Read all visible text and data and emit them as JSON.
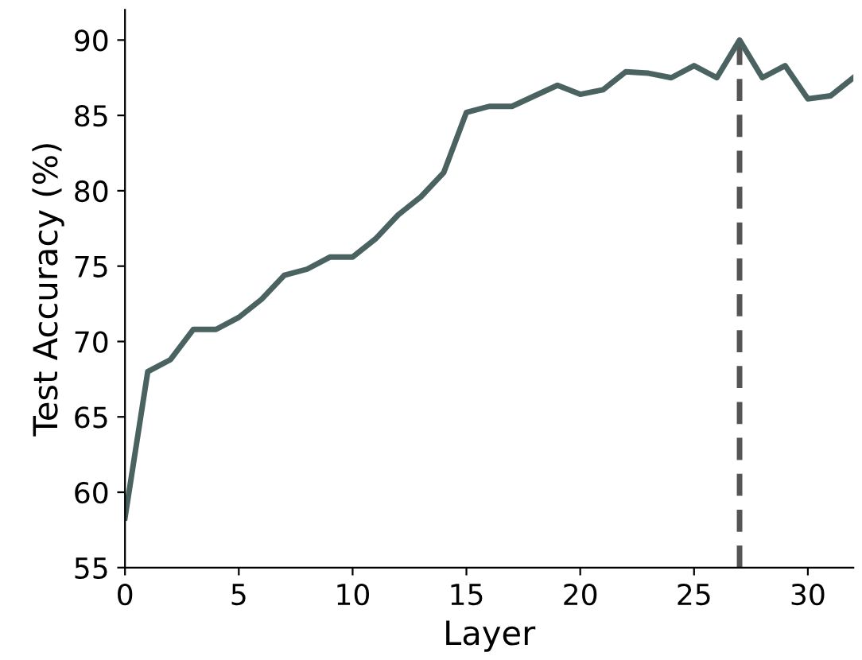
{
  "chart_data": {
    "type": "line",
    "xlabel": "Layer",
    "ylabel": "Test Accuracy (%)",
    "x": [
      0,
      1,
      2,
      3,
      4,
      5,
      6,
      7,
      8,
      9,
      10,
      11,
      12,
      13,
      14,
      15,
      16,
      17,
      18,
      19,
      20,
      21,
      22,
      23,
      24,
      25,
      26,
      27,
      28,
      29,
      30,
      31,
      32
    ],
    "series": [
      {
        "color": "#4a6260",
        "values": [
          58.3,
          68.0,
          68.8,
          70.8,
          70.8,
          71.6,
          72.8,
          74.4,
          74.8,
          75.6,
          75.6,
          76.8,
          78.4,
          79.6,
          81.2,
          85.2,
          85.6,
          85.6,
          86.3,
          87.0,
          86.4,
          86.7,
          87.9,
          87.8,
          87.5,
          88.3,
          87.5,
          90.0,
          87.5,
          88.3,
          86.1,
          86.3,
          87.5
        ]
      }
    ],
    "ref_lines": [
      {
        "axis": "x",
        "value": 27,
        "color": "#555555",
        "line_style": "dashed"
      }
    ],
    "xlim": [
      0,
      32
    ],
    "xticks": [
      0,
      5,
      10,
      15,
      20,
      25,
      30
    ],
    "ylim": [
      55,
      92
    ],
    "yticks": [
      55,
      60,
      65,
      70,
      75,
      80,
      85,
      90
    ],
    "grid": false
  }
}
